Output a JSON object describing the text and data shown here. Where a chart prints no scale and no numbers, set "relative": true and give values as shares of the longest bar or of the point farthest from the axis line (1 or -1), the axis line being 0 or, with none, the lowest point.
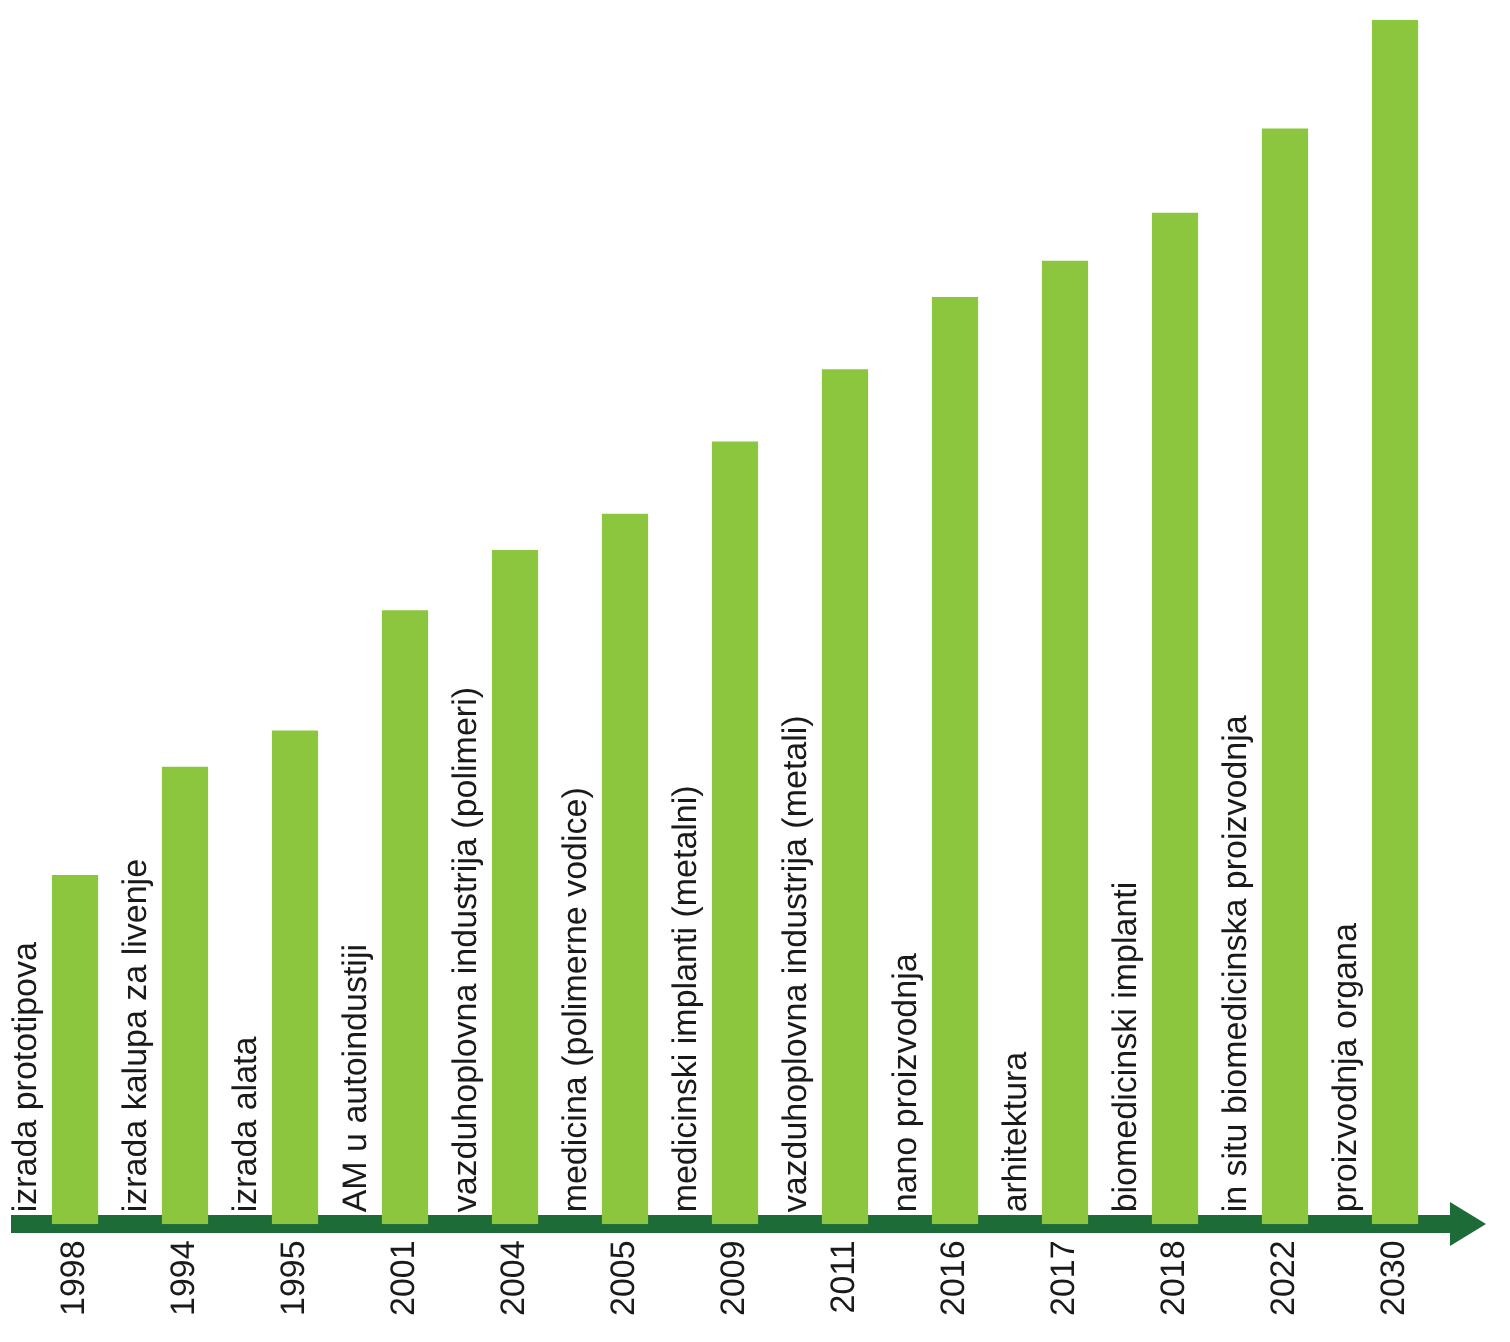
{
  "chart_data": {
    "type": "bar",
    "relative": true,
    "grid": false,
    "legend": false,
    "tick_labels": "x",
    "categories": [
      "1998",
      "1994",
      "1995",
      "2001",
      "2004",
      "2005",
      "2009",
      "2011",
      "2016",
      "2017",
      "2018",
      "2022",
      "2030"
    ],
    "values": [
      0.29,
      0.38,
      0.41,
      0.51,
      0.56,
      0.59,
      0.65,
      0.71,
      0.77,
      0.8,
      0.84,
      0.91,
      1
    ],
    "color": "#8cc63f",
    "annotations": [
      "izrada prototipova",
      "izrada kalupa za livenje",
      "izrada alata",
      "AM u autoindustiji",
      "vazduhoplovna industrija (polimeri)",
      "medicina (polimerne vodice)",
      "medicinski implanti (metalni)",
      "vazduhoplovna industrija (metali)",
      "nano proizvodnja",
      "arhitektura",
      "biomedicinski implanti",
      "in situ biomedicinska proizvodnja",
      "proizvodnja organa"
    ]
  }
}
